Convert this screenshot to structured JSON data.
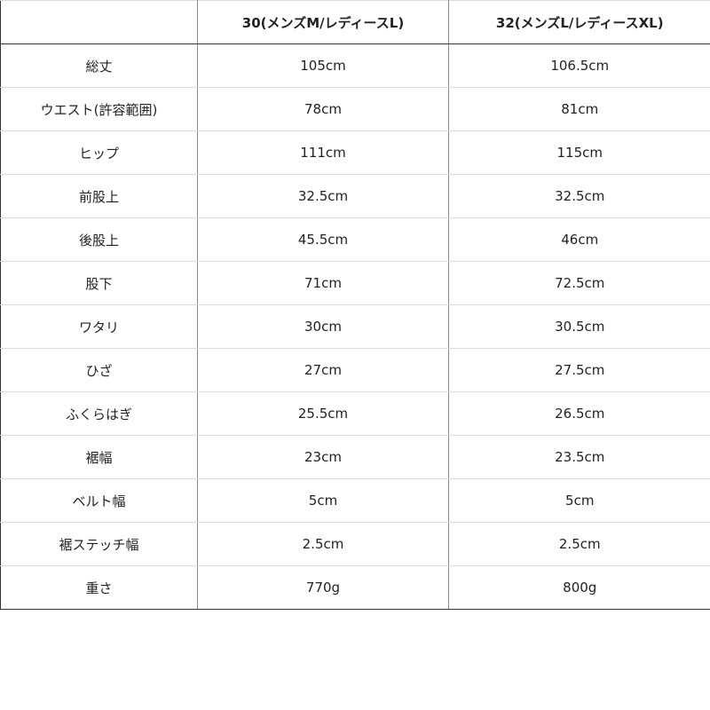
{
  "table": {
    "headers": [
      "",
      "30(メンズM/レディースL)",
      "32(メンズL/レディースXL)"
    ],
    "rows": [
      [
        "総丈",
        "105cm",
        "106.5cm"
      ],
      [
        "ウエスト(許容範囲)",
        "78cm",
        "81cm"
      ],
      [
        "ヒップ",
        "111cm",
        "115cm"
      ],
      [
        "前股上",
        "32.5cm",
        "32.5cm"
      ],
      [
        "後股上",
        "45.5cm",
        "46cm"
      ],
      [
        "股下",
        "71cm",
        "72.5cm"
      ],
      [
        "ワタリ",
        "30cm",
        "30.5cm"
      ],
      [
        "ひざ",
        "27cm",
        "27.5cm"
      ],
      [
        "ふくらはぎ",
        "25.5cm",
        "26.5cm"
      ],
      [
        "裾幅",
        "23cm",
        "23.5cm"
      ],
      [
        "ベルト幅",
        "5cm",
        "5cm"
      ],
      [
        "裾ステッチ幅",
        "2.5cm",
        "2.5cm"
      ],
      [
        "重さ",
        "770g",
        "800g"
      ]
    ]
  }
}
